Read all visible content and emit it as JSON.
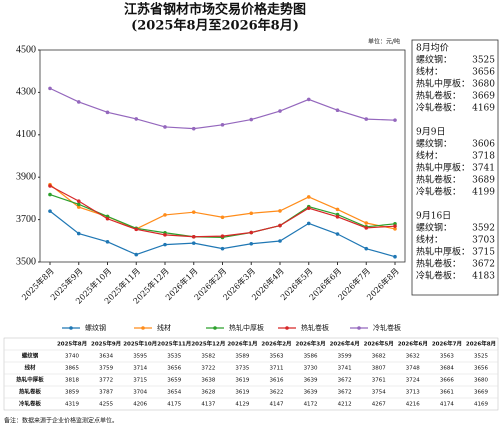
{
  "chart_data": {
    "type": "line",
    "title": "江苏省钢材市场交易价格走势图",
    "subtitle": "(2025年8月至2026年8月)",
    "unit": "单位：元/吨",
    "categories": [
      "2025年8月",
      "2025年9月",
      "2025年10月",
      "2025年11月",
      "2025年12月",
      "2026年1月",
      "2026年2月",
      "2026年3月",
      "2026年4月",
      "2026年5月",
      "2026年6月",
      "2026年7月",
      "2026年8月"
    ],
    "series": [
      {
        "name": "螺纹钢",
        "color": "#1f77b4",
        "values": [
          3740,
          3634,
          3595,
          3535,
          3582,
          3589,
          3563,
          3586,
          3599,
          3682,
          3632,
          3563,
          3525
        ]
      },
      {
        "name": "线材",
        "color": "#ff8c1a",
        "values": [
          3865,
          3759,
          3714,
          3656,
          3722,
          3735,
          3711,
          3730,
          3741,
          3807,
          3748,
          3684,
          3656
        ]
      },
      {
        "name": "热轧中厚板",
        "color": "#2ca02c",
        "values": [
          3818,
          3772,
          3715,
          3659,
          3638,
          3619,
          3616,
          3639,
          3672,
          3761,
          3724,
          3666,
          3680
        ]
      },
      {
        "name": "热轧卷板",
        "color": "#d62728",
        "values": [
          3859,
          3787,
          3704,
          3654,
          3628,
          3619,
          3622,
          3639,
          3672,
          3754,
          3713,
          3661,
          3669
        ]
      },
      {
        "name": "冷轧卷板",
        "color": "#9467bd",
        "values": [
          4319,
          4255,
          4206,
          4175,
          4137,
          4129,
          4147,
          4172,
          4212,
          4267,
          4216,
          4174,
          4169
        ]
      }
    ],
    "ylim": [
      3500,
      4500
    ],
    "yticks": [
      3500,
      3700,
      3900,
      4100,
      4300,
      4500
    ]
  },
  "side_panel": [
    {
      "title": "8月均价",
      "items": [
        {
          "name": "螺纹钢：",
          "value": 3525
        },
        {
          "name": "线材：",
          "value": 3656
        },
        {
          "name": "热轧中厚板：",
          "value": 3680
        },
        {
          "name": "热轧卷板：",
          "value": 3669
        },
        {
          "name": "冷轧卷板：",
          "value": 4169
        }
      ]
    },
    {
      "title": "9月9日",
      "items": [
        {
          "name": "螺纹钢：",
          "value": 3606
        },
        {
          "name": "线材：",
          "value": 3718
        },
        {
          "name": "热轧中厚板：",
          "value": 3741
        },
        {
          "name": "热轧卷板：",
          "value": 3689
        },
        {
          "name": "冷轧卷板：",
          "value": 4199
        }
      ]
    },
    {
      "title": "9月16日",
      "items": [
        {
          "name": "螺纹钢：",
          "value": 3592
        },
        {
          "name": "线材：",
          "value": 3703
        },
        {
          "name": "热轧中厚板：",
          "value": 3715
        },
        {
          "name": "热轧卷板：",
          "value": 3672
        },
        {
          "name": "冷轧卷板：",
          "value": 4183
        }
      ]
    }
  ],
  "note": "备注：数据来源于企业价格监测定点单位。"
}
